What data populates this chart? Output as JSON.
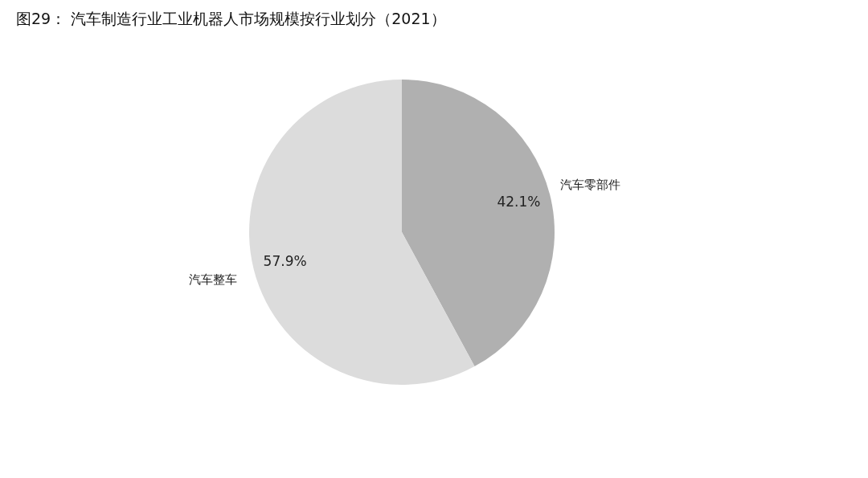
{
  "chart_data": {
    "type": "pie",
    "title": "图29：    汽车制造行业工业机器人市场规模按行业划分（2021）",
    "categories": [
      "汽车零部件",
      "汽车整车"
    ],
    "values": [
      42.1,
      57.9
    ],
    "colors": [
      "#b0b0b0",
      "#dcdcdc"
    ],
    "value_labels": [
      "42.1%",
      "57.9%"
    ],
    "legend": false
  }
}
